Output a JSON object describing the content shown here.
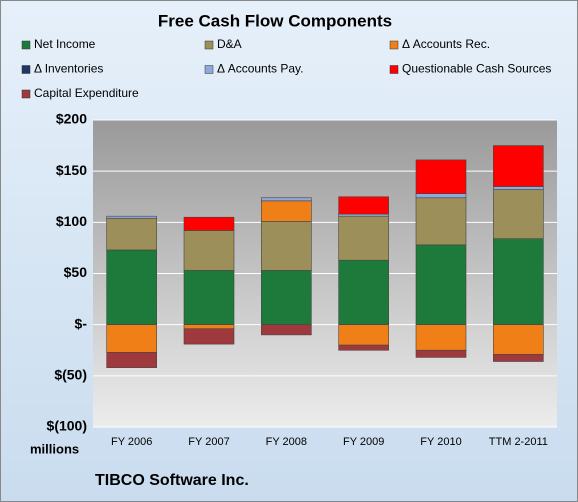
{
  "chart_data": {
    "type": "stacked-bar",
    "title": "Free Cash Flow Components",
    "categories": [
      "FY 2006",
      "FY 2007",
      "FY 2008",
      "FY 2009",
      "FY 2010",
      "TTM 2-2011"
    ],
    "series": [
      {
        "name": "Net Income",
        "color": "#1e7a3a",
        "values": [
          73,
          53,
          53,
          63,
          78,
          84
        ]
      },
      {
        "name": "D&A",
        "color": "#9c8f5a",
        "values": [
          31,
          39,
          48,
          43,
          46,
          48
        ]
      },
      {
        "name": "Δ Accounts Rec.",
        "color": "#f07f17",
        "values": [
          -27,
          -4,
          20,
          -20,
          -25,
          -29
        ]
      },
      {
        "name": "Δ Inventories",
        "color": "#1f3864",
        "values": [
          0,
          0,
          0,
          0,
          0,
          0
        ]
      },
      {
        "name": "Δ Accounts Pay.",
        "color": "#8ea9db",
        "values": [
          2,
          0,
          3,
          2,
          4,
          3
        ]
      },
      {
        "name": "Questionable Cash Sources",
        "color": "#ff0000",
        "values": [
          0,
          13,
          0,
          17,
          33,
          40
        ]
      },
      {
        "name": "Capital Expenditure",
        "color": "#a0393e",
        "values": [
          -15,
          -15,
          -10,
          -5,
          -7,
          -7
        ]
      }
    ],
    "ylim": [
      -100,
      200
    ],
    "yticks": [
      {
        "value": -100,
        "label": "$(100)"
      },
      {
        "value": -50,
        "label": "$(50)"
      },
      {
        "value": 0,
        "label": "$-"
      },
      {
        "value": 50,
        "label": "$50"
      },
      {
        "value": 100,
        "label": "$100"
      },
      {
        "value": 150,
        "label": "$150"
      },
      {
        "value": 200,
        "label": "$200"
      }
    ],
    "y_label": "millions",
    "footer": "TIBCO Software Inc.",
    "grid": true
  }
}
